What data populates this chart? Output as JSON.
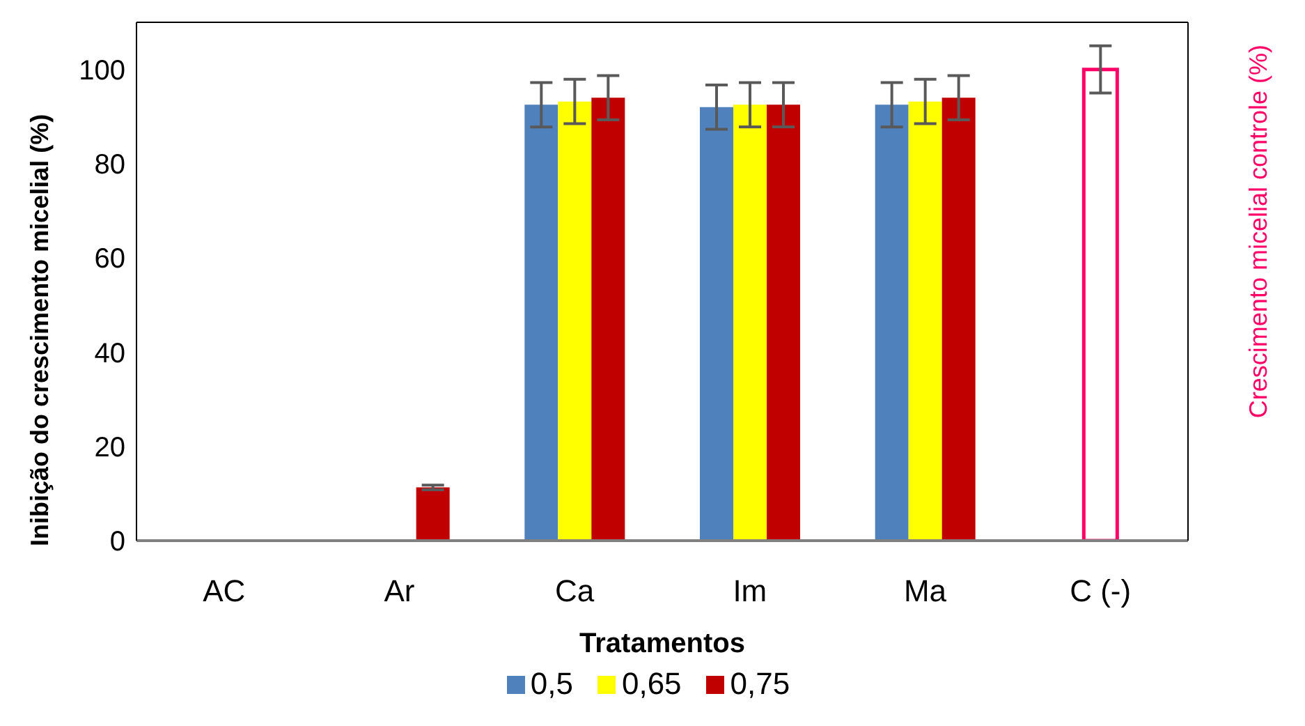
{
  "chart_data": {
    "type": "bar",
    "xlabel": "Tratamentos",
    "ylabel": "Inibição do crescimento micelial (%)",
    "y2label": "Crescimento micelial controle (%)",
    "categories": [
      "AC",
      "Ar",
      "Ca",
      "Im",
      "Ma",
      "C (-)"
    ],
    "series": [
      {
        "name": "0,5",
        "color": "#4f81bd",
        "values": [
          0,
          0,
          92.5,
          92,
          92.5,
          null
        ],
        "errors": [
          null,
          null,
          4.7,
          4.7,
          4.7,
          null
        ]
      },
      {
        "name": "0,65",
        "color": "#ffff00",
        "values": [
          0,
          0,
          93.2,
          92.5,
          93.2,
          null
        ],
        "errors": [
          null,
          null,
          4.7,
          4.7,
          4.7,
          null
        ]
      },
      {
        "name": "0,75",
        "color": "#c00000",
        "values": [
          0,
          11.3,
          94,
          92.5,
          94,
          null
        ],
        "errors": [
          null,
          0.5,
          4.7,
          4.7,
          4.7,
          null
        ]
      },
      {
        "color": "#ff0066",
        "colors": [
          "#ffffff",
          "#ffffff",
          "#ffffff",
          "#ffffff",
          "#ffffff",
          "#ffffff"
        ],
        "values": [
          null,
          null,
          null,
          null,
          null,
          100
        ],
        "errors": [
          null,
          null,
          null,
          null,
          null,
          5
        ]
      }
    ],
    "ylim": [
      0,
      110
    ],
    "yticks": [
      0,
      20,
      40,
      60,
      80,
      100
    ],
    "grid": false,
    "legend": "bottom"
  }
}
